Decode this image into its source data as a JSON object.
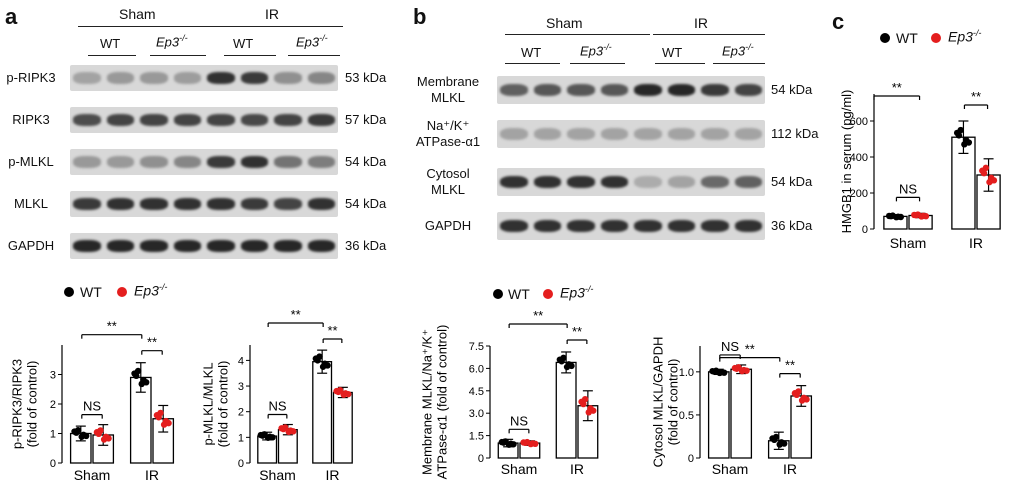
{
  "panels": {
    "a": {
      "letter": "a",
      "groups": [
        "Sham",
        "IR"
      ],
      "genotypes": [
        "WT",
        "Ep3-/-",
        "WT",
        "Ep3-/-"
      ],
      "genotype_display": {
        "wt": "WT",
        "ko_base": "Ep3",
        "ko_sup": "-/-"
      },
      "blots": [
        {
          "label": "p-RIPK3",
          "kda": "53 kDa",
          "intensities": [
            0.25,
            0.3,
            0.3,
            0.28,
            0.85,
            0.8,
            0.35,
            0.4
          ]
        },
        {
          "label": "RIPK3",
          "kda": "57 kDa",
          "intensities": [
            0.7,
            0.75,
            0.75,
            0.75,
            0.75,
            0.72,
            0.75,
            0.8
          ]
        },
        {
          "label": "p-MLKL",
          "kda": "54 kDa",
          "intensities": [
            0.3,
            0.3,
            0.35,
            0.4,
            0.8,
            0.85,
            0.5,
            0.45
          ]
        },
        {
          "label": "MLKL",
          "kda": "54 kDa",
          "intensities": [
            0.8,
            0.85,
            0.85,
            0.85,
            0.85,
            0.8,
            0.75,
            0.85
          ]
        },
        {
          "label": "GAPDH",
          "kda": "36 kDa",
          "intensities": [
            0.9,
            0.9,
            0.9,
            0.9,
            0.9,
            0.9,
            0.9,
            0.9
          ]
        }
      ]
    },
    "b": {
      "letter": "b",
      "groups": [
        "Sham",
        "IR"
      ],
      "genotypes": [
        "WT",
        "Ep3-/-",
        "WT",
        "Ep3-/-"
      ],
      "blots": [
        {
          "label_lines": [
            "Membrane",
            "MLKL"
          ],
          "kda": "54 kDa",
          "intensities": [
            0.6,
            0.65,
            0.65,
            0.65,
            0.9,
            0.9,
            0.8,
            0.75
          ]
        },
        {
          "label_lines": [
            "Na⁺/K⁺",
            "ATPase-α1"
          ],
          "kda": "112 kDa",
          "intensities": [
            0.25,
            0.25,
            0.25,
            0.25,
            0.25,
            0.25,
            0.25,
            0.25
          ]
        },
        {
          "label_lines": [
            "Cytosol",
            "MLKL"
          ],
          "kda": "54 kDa",
          "intensities": [
            0.85,
            0.85,
            0.85,
            0.85,
            0.2,
            0.25,
            0.55,
            0.6
          ]
        },
        {
          "label_lines": [
            "GAPDH"
          ],
          "kda": "36 kDa",
          "intensities": [
            0.85,
            0.85,
            0.85,
            0.85,
            0.85,
            0.85,
            0.85,
            0.85
          ]
        }
      ]
    },
    "c": {
      "letter": "c"
    }
  },
  "legend": {
    "wt": "WT",
    "ko": "Ep3-/-",
    "wt_color": "#000000",
    "ko_color": "#e41e1e"
  },
  "chart_data": [
    {
      "type": "bar",
      "categories": [
        "Sham",
        "IR"
      ],
      "series": [
        {
          "name": "WT",
          "values": [
            1.0,
            2.9
          ],
          "errors": [
            0.25,
            0.5
          ]
        },
        {
          "name": "Ep3-/-",
          "values": [
            0.95,
            1.5
          ],
          "errors": [
            0.35,
            0.45
          ]
        }
      ],
      "ylabel_lines": [
        "p-RIPK3/RIPK3",
        "(fold of control)"
      ],
      "ylim": [
        0,
        4
      ],
      "yticks": [
        0,
        1,
        2,
        3
      ],
      "annotations": [
        "NS",
        "**",
        "**"
      ]
    },
    {
      "type": "bar",
      "categories": [
        "Sham",
        "IR"
      ],
      "series": [
        {
          "name": "WT",
          "values": [
            1.05,
            3.95
          ],
          "errors": [
            0.15,
            0.45
          ]
        },
        {
          "name": "Ep3-/-",
          "values": [
            1.3,
            2.75
          ],
          "errors": [
            0.2,
            0.2
          ]
        }
      ],
      "ylabel_lines": [
        "p-MLKL/MLKL",
        "(fold of control)"
      ],
      "ylim": [
        0,
        4.6
      ],
      "yticks": [
        0,
        1,
        2,
        3,
        4
      ],
      "annotations": [
        "NS",
        "**",
        "**"
      ]
    },
    {
      "type": "bar",
      "categories": [
        "Sham",
        "IR"
      ],
      "series": [
        {
          "name": "WT",
          "values": [
            1.0,
            6.4
          ],
          "errors": [
            0.25,
            0.7
          ]
        },
        {
          "name": "Ep3-/-",
          "values": [
            1.0,
            3.5
          ],
          "errors": [
            0.15,
            1.0
          ]
        }
      ],
      "ylabel_lines": [
        "Membrane MLKL/Na⁺/K⁺",
        "ATPase-α1 (fold of control)"
      ],
      "ylim": [
        0,
        7.5
      ],
      "yticks": [
        0,
        1.5,
        3.0,
        4.5,
        6.0,
        7.5
      ],
      "ytick_labels": [
        "0",
        "1.5",
        "3.0",
        "4.5",
        "6.0",
        "7.5"
      ],
      "annotations": [
        "NS",
        "**",
        "**"
      ]
    },
    {
      "type": "bar",
      "categories": [
        "Sham",
        "IR"
      ],
      "series": [
        {
          "name": "WT",
          "values": [
            1.0,
            0.2
          ],
          "errors": [
            0.03,
            0.1
          ]
        },
        {
          "name": "Ep3-/-",
          "values": [
            1.03,
            0.72
          ],
          "errors": [
            0.05,
            0.12
          ]
        }
      ],
      "ylabel_lines": [
        "Cytosol MLKL/GAPDH",
        "(fold of control)"
      ],
      "ylim": [
        0,
        1.3
      ],
      "yticks": [
        0,
        0.5,
        1.0
      ],
      "ytick_labels": [
        "0",
        "0.5",
        "1.0"
      ],
      "annotations": [
        "NS",
        "**",
        "**"
      ]
    },
    {
      "type": "bar",
      "categories": [
        "Sham",
        "IR"
      ],
      "series": [
        {
          "name": "WT",
          "values": [
            70,
            510
          ],
          "errors": [
            10,
            90
          ]
        },
        {
          "name": "Ep3-/-",
          "values": [
            75,
            300
          ],
          "errors": [
            12,
            90
          ]
        }
      ],
      "ylabel_lines": [
        "HMGB1 in serum (pg/ml)"
      ],
      "ylim": [
        0,
        750
      ],
      "yticks": [
        0,
        200,
        400,
        600
      ],
      "annotations": [
        "**",
        "NS",
        "**"
      ]
    }
  ]
}
